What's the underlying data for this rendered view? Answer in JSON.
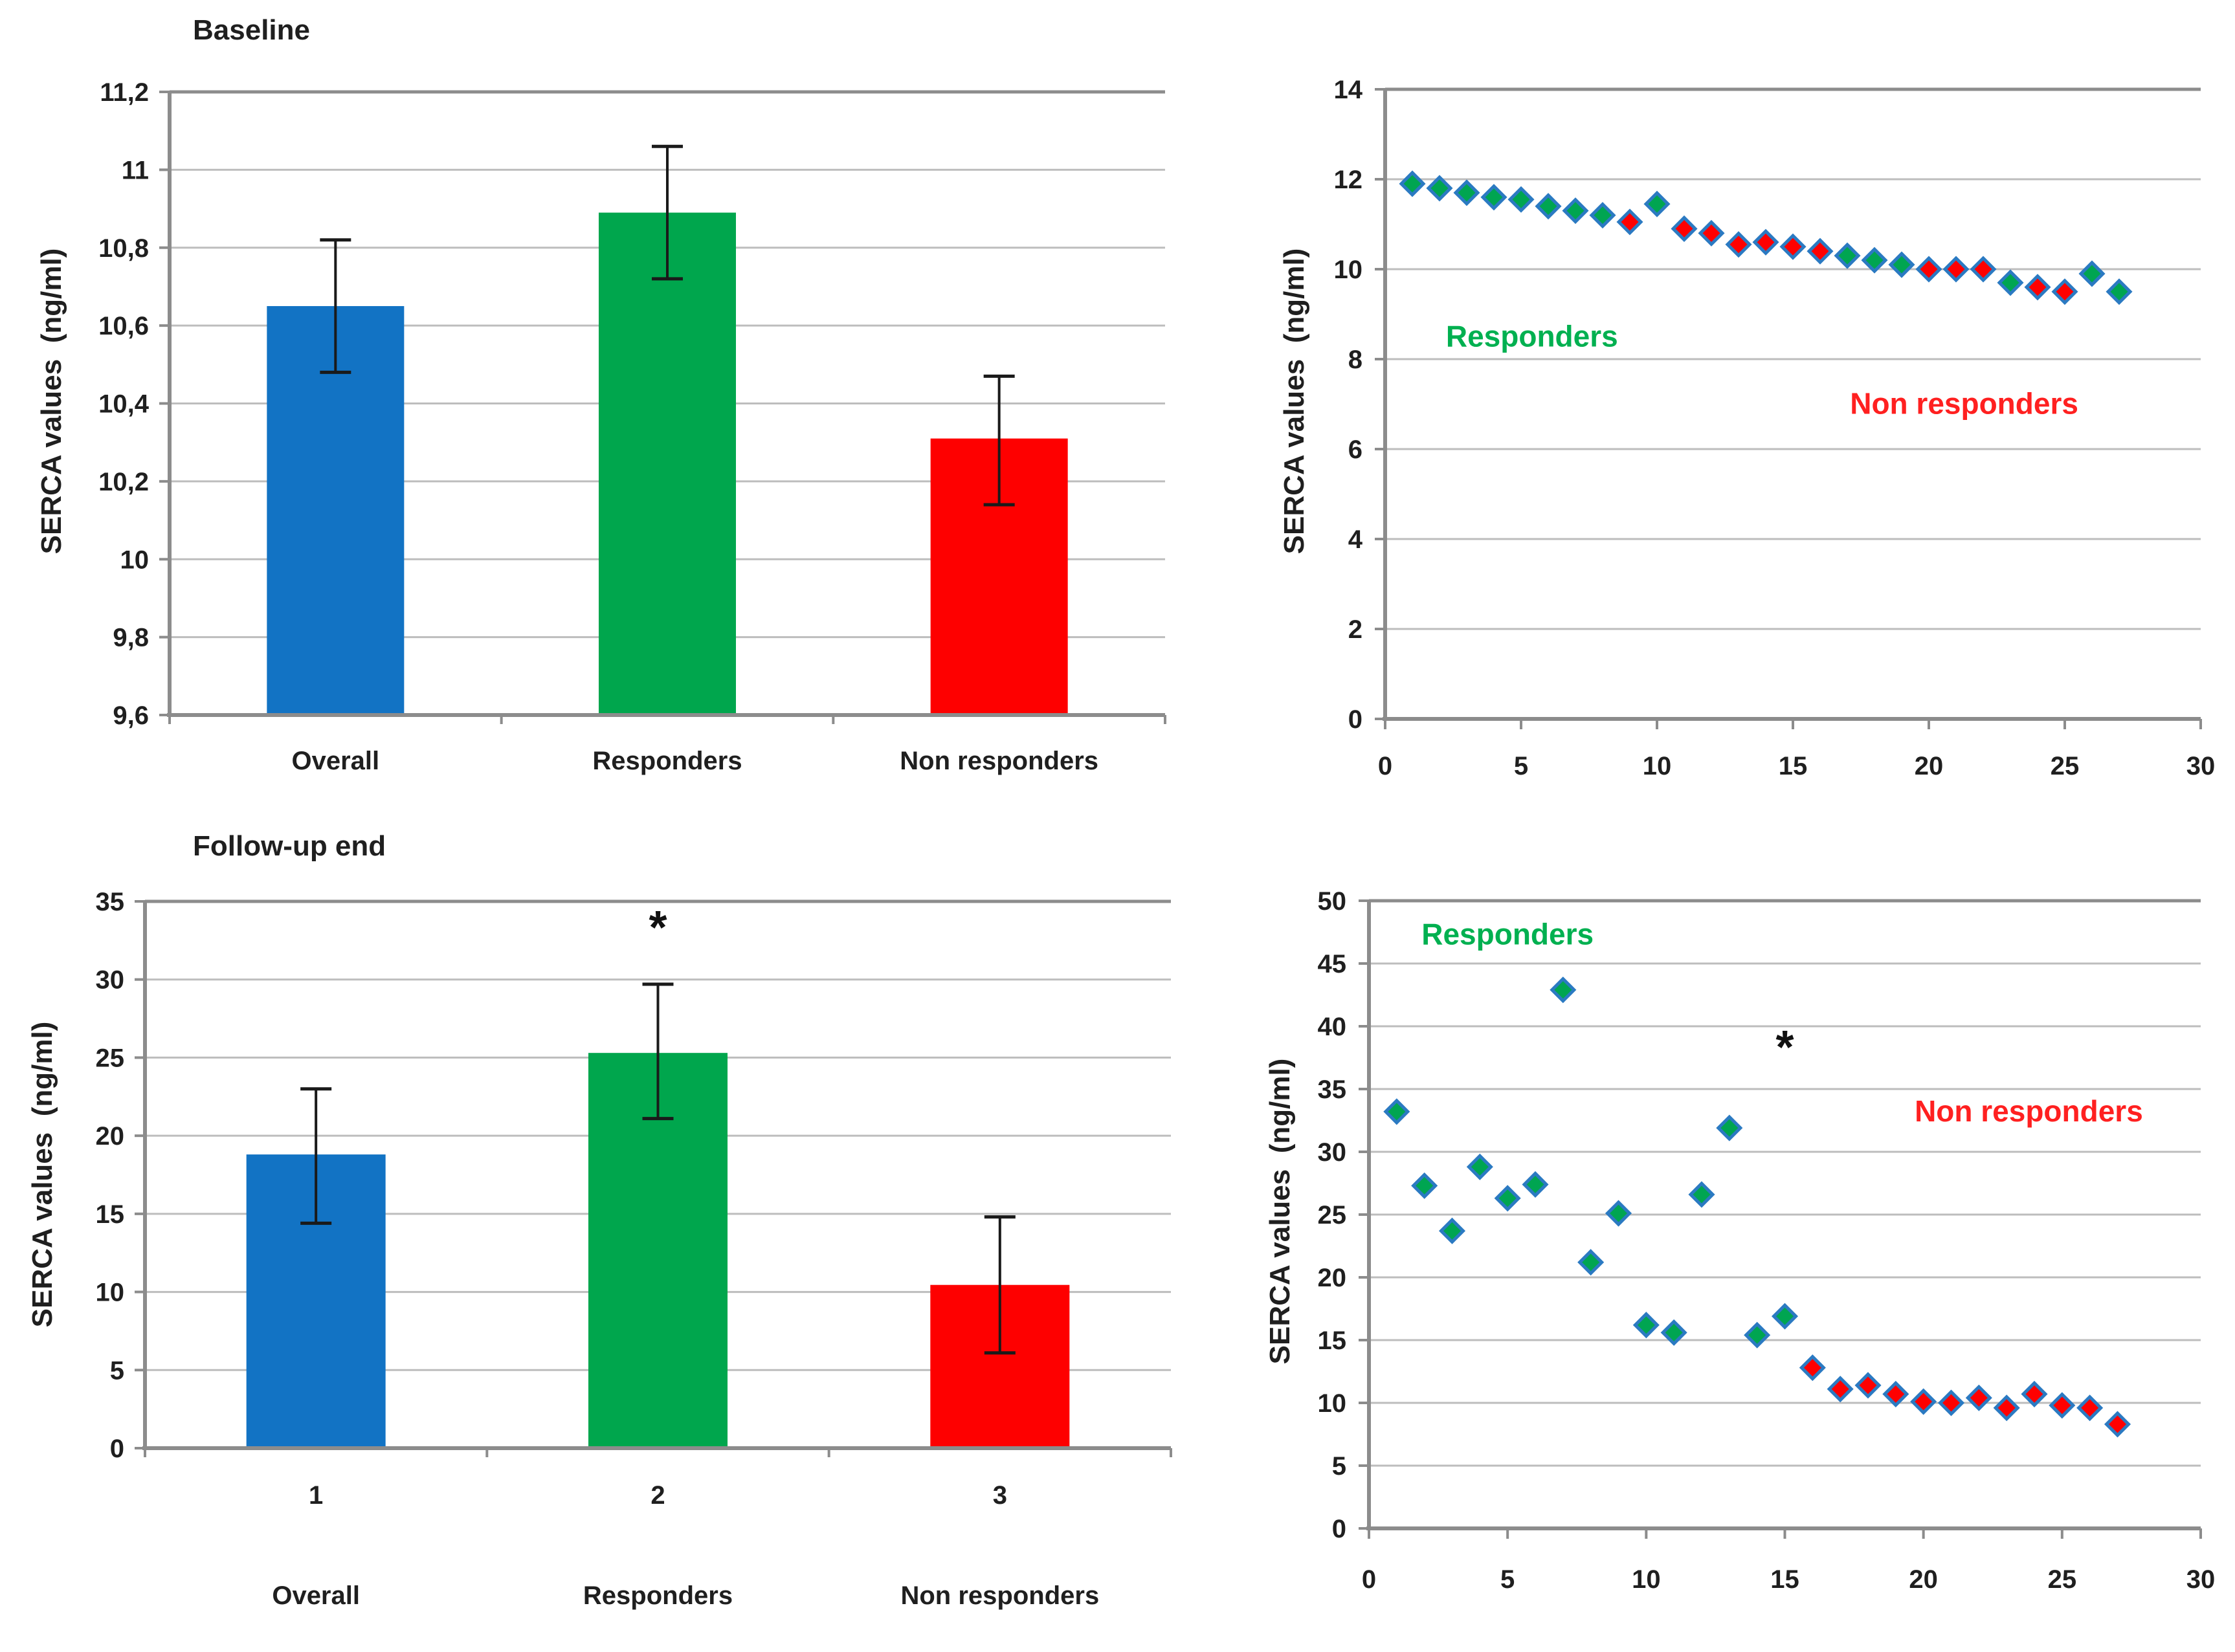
{
  "figure": {
    "background": "#ffffff"
  },
  "colors": {
    "bar_blue": "#1273c4",
    "bar_green": "#00a64d",
    "bar_red": "#fe0000",
    "marker_border": "#2b7ac2",
    "marker_green": "#00a551",
    "marker_red": "#ff0000",
    "gridline": "#bdbdbd",
    "axis": "#8c8c8c",
    "error_bar": "#1a1a1a",
    "tick_text": "#1f1f1f",
    "responders_label": "#00b050",
    "non_responders_label": "#ff2020"
  },
  "chart_data": [
    {
      "type": "bar",
      "title": "Baseline",
      "ylabel": "SERCA values  (ng/ml)",
      "ylim": [
        9.6,
        11.2
      ],
      "ystep": 0.2,
      "yticklabels": [
        "9,6",
        "9,8",
        "10",
        "10,2",
        "10,4",
        "10,6",
        "10,8",
        "11",
        "11,2"
      ],
      "categories": [
        "Overall",
        "Responders",
        "Non responders"
      ],
      "values": [
        10.65,
        10.89,
        10.31
      ],
      "err_low": [
        10.48,
        10.72,
        10.14
      ],
      "err_high": [
        10.82,
        11.06,
        10.47
      ],
      "bar_colors": [
        "#1273c4",
        "#00a64d",
        "#fe0000"
      ],
      "grid": true,
      "annotations": []
    },
    {
      "type": "scatter",
      "title": "",
      "ylabel": "SERCA values  (ng/ml)",
      "ylim": [
        0,
        14
      ],
      "ystep": 2,
      "xlim": [
        0,
        30
      ],
      "xstep": 5,
      "yticklabels": [
        "0",
        "2",
        "4",
        "6",
        "8",
        "10",
        "12",
        "14"
      ],
      "xticklabels": [
        "0",
        "5",
        "10",
        "15",
        "20",
        "25",
        "30"
      ],
      "series": [
        {
          "name": "Responders",
          "color": "#00a551",
          "points": [
            [
              1,
              11.9
            ],
            [
              2,
              11.8
            ],
            [
              3,
              11.7
            ],
            [
              4,
              11.6
            ],
            [
              5,
              11.55
            ],
            [
              6,
              11.4
            ],
            [
              7,
              11.3
            ],
            [
              8,
              11.2
            ],
            [
              10,
              11.45
            ],
            [
              17,
              10.3
            ],
            [
              18,
              10.2
            ],
            [
              19,
              10.1
            ],
            [
              23,
              9.7
            ],
            [
              26,
              9.9
            ],
            [
              27,
              9.5
            ]
          ]
        },
        {
          "name": "Non responders",
          "color": "#ff0000",
          "points": [
            [
              9,
              11.05
            ],
            [
              11,
              10.9
            ],
            [
              12,
              10.8
            ],
            [
              13,
              10.55
            ],
            [
              14,
              10.6
            ],
            [
              15,
              10.5
            ],
            [
              16,
              10.4
            ],
            [
              20,
              10.0
            ],
            [
              21,
              10.0
            ],
            [
              22,
              10.0
            ],
            [
              24,
              9.6
            ],
            [
              25,
              9.5
            ]
          ]
        }
      ],
      "labels": [
        {
          "text": "Responders",
          "color": "#00b050",
          "x": 5.4,
          "y": 8.5
        },
        {
          "text": "Non responders",
          "color": "#ff2020",
          "x": 21.3,
          "y": 7.0
        }
      ],
      "annotations": [],
      "grid": true,
      "legend_position": "inside"
    },
    {
      "type": "bar",
      "title": "Follow-up end",
      "ylabel": "SERCA values  (ng/ml)",
      "ylim": [
        0,
        35
      ],
      "ystep": 5,
      "yticklabels": [
        "0",
        "5",
        "10",
        "15",
        "20",
        "25",
        "30",
        "35"
      ],
      "categories": [
        "Overall",
        "Responders",
        "Non responders"
      ],
      "category_numbers": [
        "1",
        "2",
        "3"
      ],
      "values": [
        18.8,
        25.3,
        10.45
      ],
      "err_low": [
        14.4,
        21.1,
        6.1
      ],
      "err_high": [
        23.0,
        29.7,
        14.8
      ],
      "bar_colors": [
        "#1273c4",
        "#00a64d",
        "#fe0000"
      ],
      "grid": true,
      "annotations": [
        {
          "text": "*",
          "category_index": 1,
          "y": 33.3
        }
      ]
    },
    {
      "type": "scatter",
      "title": "",
      "ylabel": "SERCA values  (ng/ml)",
      "ylim": [
        0,
        50
      ],
      "ystep": 5,
      "xlim": [
        0,
        30
      ],
      "xstep": 5,
      "yticklabels": [
        "0",
        "5",
        "10",
        "15",
        "20",
        "25",
        "30",
        "35",
        "40",
        "45",
        "50"
      ],
      "xticklabels": [
        "0",
        "5",
        "10",
        "15",
        "20",
        "25",
        "30"
      ],
      "series": [
        {
          "name": "Responders",
          "color": "#00a551",
          "points": [
            [
              1,
              33.2
            ],
            [
              2,
              27.3
            ],
            [
              3,
              23.7
            ],
            [
              4,
              28.8
            ],
            [
              5,
              26.3
            ],
            [
              6,
              27.4
            ],
            [
              7,
              42.9
            ],
            [
              8,
              21.2
            ],
            [
              9,
              25.1
            ],
            [
              10,
              16.2
            ],
            [
              11,
              15.6
            ],
            [
              12,
              26.6
            ],
            [
              13,
              31.9
            ],
            [
              14,
              15.4
            ],
            [
              15,
              16.9
            ]
          ]
        },
        {
          "name": "Non responders",
          "color": "#ff0000",
          "points": [
            [
              16,
              12.8
            ],
            [
              17,
              11.1
            ],
            [
              18,
              11.4
            ],
            [
              19,
              10.7
            ],
            [
              20,
              10.1
            ],
            [
              21,
              10.0
            ],
            [
              22,
              10.4
            ],
            [
              23,
              9.6
            ],
            [
              24,
              10.7
            ],
            [
              25,
              9.8
            ],
            [
              26,
              9.6
            ],
            [
              27,
              8.3
            ]
          ]
        }
      ],
      "labels": [
        {
          "text": "Responders",
          "color": "#00b050",
          "x": 5.0,
          "y": 47.3
        },
        {
          "text": "Non responders",
          "color": "#ff2020",
          "x": 23.8,
          "y": 33.2
        }
      ],
      "annotations": [
        {
          "text": "*",
          "x": 15,
          "y": 38.3
        }
      ],
      "grid": true,
      "legend_position": "inside"
    }
  ]
}
